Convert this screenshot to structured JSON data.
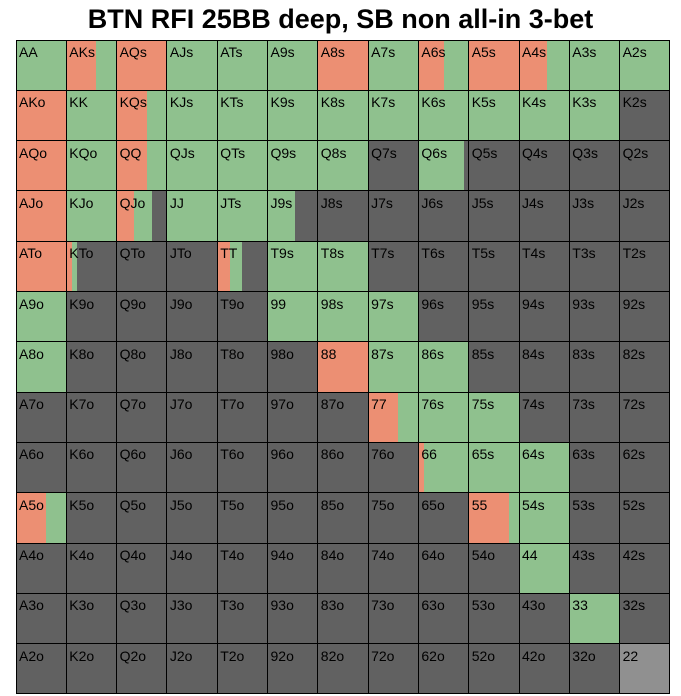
{
  "title": "BTN RFI 25BB deep, SB non all-in 3-bet",
  "colors": {
    "raise": "#ec8f73",
    "call": "#8fc18e",
    "fold": "#616161",
    "none": "#909090",
    "grid": "#000000"
  },
  "chart_data": {
    "type": "heatmap",
    "title": "BTN RFI 25BB deep, SB non all-in 3-bet",
    "legend": "none",
    "series": [
      {
        "name": "raise",
        "color": "#ec8f73"
      },
      {
        "name": "call",
        "color": "#8fc18e"
      },
      {
        "name": "fold",
        "color": "#616161"
      }
    ],
    "ranks": [
      "A",
      "K",
      "Q",
      "J",
      "T",
      "9",
      "8",
      "7",
      "6",
      "5",
      "4",
      "3",
      "2"
    ],
    "hands": [
      [
        "AA",
        "AKs",
        "AQs",
        "AJs",
        "ATs",
        "A9s",
        "A8s",
        "A7s",
        "A6s",
        "A5s",
        "A4s",
        "A3s",
        "A2s"
      ],
      [
        "AKo",
        "KK",
        "KQs",
        "KJs",
        "KTs",
        "K9s",
        "K8s",
        "K7s",
        "K6s",
        "K5s",
        "K4s",
        "K3s",
        "K2s"
      ],
      [
        "AQo",
        "KQo",
        "QQ",
        "QJs",
        "QTs",
        "Q9s",
        "Q8s",
        "Q7s",
        "Q6s",
        "Q5s",
        "Q4s",
        "Q3s",
        "Q2s"
      ],
      [
        "AJo",
        "KJo",
        "QJo",
        "JJ",
        "JTs",
        "J9s",
        "J8s",
        "J7s",
        "J6s",
        "J5s",
        "J4s",
        "J3s",
        "J2s"
      ],
      [
        "ATo",
        "KTo",
        "QTo",
        "JTo",
        "TT",
        "T9s",
        "T8s",
        "T7s",
        "T6s",
        "T5s",
        "T4s",
        "T3s",
        "T2s"
      ],
      [
        "A9o",
        "K9o",
        "Q9o",
        "J9o",
        "T9o",
        "99",
        "98s",
        "97s",
        "96s",
        "95s",
        "94s",
        "93s",
        "92s"
      ],
      [
        "A8o",
        "K8o",
        "Q8o",
        "J8o",
        "T8o",
        "98o",
        "88",
        "87s",
        "86s",
        "85s",
        "84s",
        "83s",
        "82s"
      ],
      [
        "A7o",
        "K7o",
        "Q7o",
        "J7o",
        "T7o",
        "97o",
        "87o",
        "77",
        "76s",
        "75s",
        "74s",
        "73s",
        "72s"
      ],
      [
        "A6o",
        "K6o",
        "Q6o",
        "J6o",
        "T6o",
        "96o",
        "86o",
        "76o",
        "66",
        "65s",
        "64s",
        "63s",
        "62s"
      ],
      [
        "A5o",
        "K5o",
        "Q5o",
        "J5o",
        "T5o",
        "95o",
        "85o",
        "75o",
        "65o",
        "55",
        "54s",
        "53s",
        "52s"
      ],
      [
        "A4o",
        "K4o",
        "Q4o",
        "J4o",
        "T4o",
        "94o",
        "84o",
        "74o",
        "64o",
        "54o",
        "44",
        "43s",
        "42s"
      ],
      [
        "A3o",
        "K3o",
        "Q3o",
        "J3o",
        "T3o",
        "93o",
        "83o",
        "73o",
        "63o",
        "53o",
        "43o",
        "33",
        "32s"
      ],
      [
        "A2o",
        "K2o",
        "Q2o",
        "J2o",
        "T2o",
        "92o",
        "82o",
        "72o",
        "62o",
        "52o",
        "42o",
        "32o",
        "22"
      ]
    ],
    "frequencies": [
      [
        [
          0,
          1
        ],
        [
          0.6,
          0.4
        ],
        [
          1,
          0
        ],
        [
          0,
          1
        ],
        [
          0,
          1
        ],
        [
          0,
          1
        ],
        [
          1,
          0
        ],
        [
          0,
          1
        ],
        [
          0.5,
          0.5
        ],
        [
          1,
          0
        ],
        [
          0.55,
          0.45
        ],
        [
          0,
          1
        ],
        [
          0,
          1
        ]
      ],
      [
        [
          1,
          0
        ],
        [
          0,
          1
        ],
        [
          0.6,
          0.4
        ],
        [
          0,
          1
        ],
        [
          0,
          1
        ],
        [
          0,
          1
        ],
        [
          0,
          1
        ],
        [
          0,
          1
        ],
        [
          0,
          1
        ],
        [
          0,
          1
        ],
        [
          0,
          1
        ],
        [
          0,
          1
        ],
        [
          0,
          0
        ]
      ],
      [
        [
          1,
          0
        ],
        [
          0,
          1
        ],
        [
          0.6,
          0.4
        ],
        [
          0,
          1
        ],
        [
          0,
          1
        ],
        [
          0,
          1
        ],
        [
          0,
          1
        ],
        [
          0,
          0
        ],
        [
          0,
          0.9
        ],
        [
          0,
          0
        ],
        [
          0,
          0
        ],
        [
          0,
          0
        ],
        [
          0,
          0
        ]
      ],
      [
        [
          1,
          0
        ],
        [
          0,
          1
        ],
        [
          0.35,
          0.35
        ],
        [
          0,
          1
        ],
        [
          0,
          1
        ],
        [
          0,
          0.55
        ],
        [
          0,
          0
        ],
        [
          0,
          0
        ],
        [
          0,
          0
        ],
        [
          0,
          0
        ],
        [
          0,
          0
        ],
        [
          0,
          0
        ],
        [
          0,
          0
        ]
      ],
      [
        [
          1,
          0
        ],
        [
          0.12,
          0.1
        ],
        [
          0,
          0
        ],
        [
          0,
          0
        ],
        [
          0.25,
          0.25
        ],
        [
          0,
          1
        ],
        [
          0,
          1
        ],
        [
          0,
          0
        ],
        [
          0,
          0
        ],
        [
          0,
          0
        ],
        [
          0,
          0
        ],
        [
          0,
          0
        ],
        [
          0,
          0
        ]
      ],
      [
        [
          0,
          1
        ],
        [
          0,
          0
        ],
        [
          0,
          0
        ],
        [
          0,
          0
        ],
        [
          0,
          0
        ],
        [
          0,
          1
        ],
        [
          0,
          1
        ],
        [
          0,
          1
        ],
        [
          0,
          0
        ],
        [
          0,
          0
        ],
        [
          0,
          0
        ],
        [
          0,
          0
        ],
        [
          0,
          0
        ]
      ],
      [
        [
          0,
          1
        ],
        [
          0,
          0
        ],
        [
          0,
          0
        ],
        [
          0,
          0
        ],
        [
          0,
          0
        ],
        [
          0,
          0
        ],
        [
          1,
          0
        ],
        [
          0,
          1
        ],
        [
          0,
          1
        ],
        [
          0,
          0
        ],
        [
          0,
          0
        ],
        [
          0,
          0
        ],
        [
          0,
          0
        ]
      ],
      [
        [
          0,
          0
        ],
        [
          0,
          0
        ],
        [
          0,
          0
        ],
        [
          0,
          0
        ],
        [
          0,
          0
        ],
        [
          0,
          0
        ],
        [
          0,
          0
        ],
        [
          0.6,
          0.4
        ],
        [
          0,
          1
        ],
        [
          0,
          1
        ],
        [
          0,
          0
        ],
        [
          0,
          0
        ],
        [
          0,
          0
        ]
      ],
      [
        [
          0,
          0
        ],
        [
          0,
          0
        ],
        [
          0,
          0
        ],
        [
          0,
          0
        ],
        [
          0,
          0
        ],
        [
          0,
          0
        ],
        [
          0,
          0
        ],
        [
          0,
          0
        ],
        [
          0.12,
          0.88
        ],
        [
          0,
          1
        ],
        [
          0,
          1
        ],
        [
          0,
          0
        ],
        [
          0,
          0
        ]
      ],
      [
        [
          0.6,
          0.4
        ],
        [
          0,
          0
        ],
        [
          0,
          0
        ],
        [
          0,
          0
        ],
        [
          0,
          0
        ],
        [
          0,
          0
        ],
        [
          0,
          0
        ],
        [
          0,
          0
        ],
        [
          0,
          0
        ],
        [
          0.8,
          0.2
        ],
        [
          0,
          1
        ],
        [
          0,
          0
        ],
        [
          0,
          0
        ]
      ],
      [
        [
          0,
          0
        ],
        [
          0,
          0
        ],
        [
          0,
          0
        ],
        [
          0,
          0
        ],
        [
          0,
          0
        ],
        [
          0,
          0
        ],
        [
          0,
          0
        ],
        [
          0,
          0
        ],
        [
          0,
          0
        ],
        [
          0,
          0
        ],
        [
          0,
          1
        ],
        [
          0,
          0
        ],
        [
          0,
          0
        ]
      ],
      [
        [
          0,
          0
        ],
        [
          0,
          0
        ],
        [
          0,
          0
        ],
        [
          0,
          0
        ],
        [
          0,
          0
        ],
        [
          0,
          0
        ],
        [
          0,
          0
        ],
        [
          0,
          0
        ],
        [
          0,
          0
        ],
        [
          0,
          0
        ],
        [
          0,
          0
        ],
        [
          0,
          1
        ],
        [
          0,
          0
        ]
      ],
      [
        [
          0,
          0
        ],
        [
          0,
          0
        ],
        [
          0,
          0
        ],
        [
          0,
          0
        ],
        [
          0,
          0
        ],
        [
          0,
          0
        ],
        [
          0,
          0
        ],
        [
          0,
          0
        ],
        [
          0,
          0
        ],
        [
          0,
          0
        ],
        [
          0,
          0
        ],
        [
          0,
          0
        ],
        "none"
      ]
    ]
  }
}
